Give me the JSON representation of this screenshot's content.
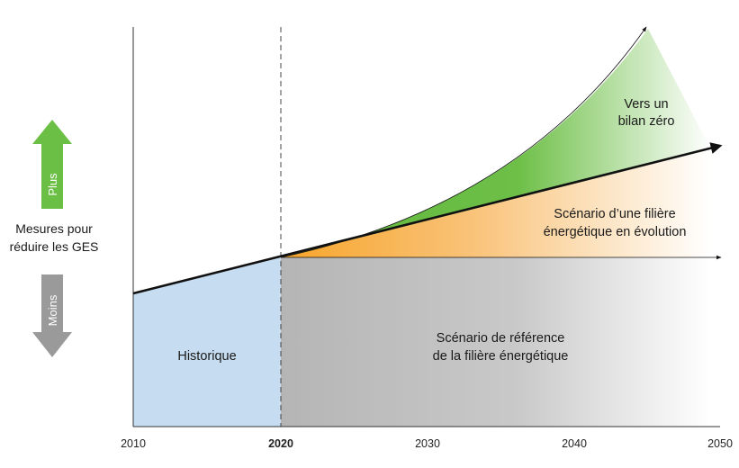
{
  "axis": {
    "x_ticks": [
      {
        "label": "2010",
        "bold": false
      },
      {
        "label": "2020",
        "bold": true
      },
      {
        "label": "2030",
        "bold": false
      },
      {
        "label": "2040",
        "bold": false
      },
      {
        "label": "2050",
        "bold": false
      }
    ]
  },
  "side": {
    "up_label": "Plus",
    "down_label": "Moins",
    "measure_line1": "Mesures pour",
    "measure_line2": "réduire les GES"
  },
  "regions": {
    "historique": "Historique",
    "reference_line1": "Scénario de référence",
    "reference_line2": "de la filière énergétique",
    "evolution_line1": "Scénario d’une filière",
    "evolution_line2": "énergétique en évolution",
    "zero_line1": "Vers un",
    "zero_line2": "bilan zéro"
  },
  "colors": {
    "historique": "#c6dcf0",
    "reference": "#bdbdbd",
    "evolution": "#f5a623",
    "zero": "#5fb83a",
    "up_arrow": "#6cbf45",
    "down_arrow": "#9a9a9a"
  }
}
